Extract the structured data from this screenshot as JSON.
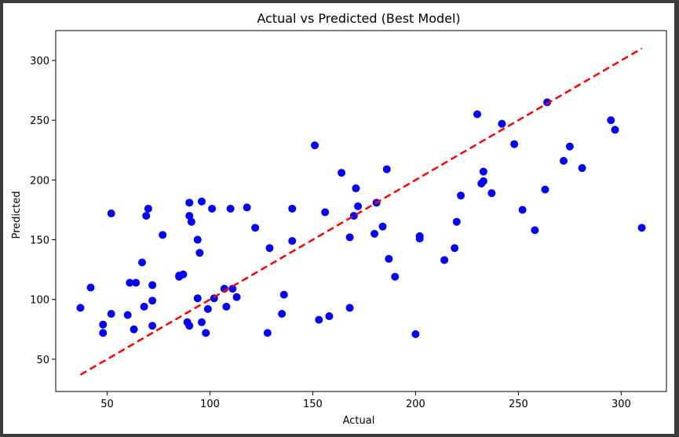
{
  "chart_data": {
    "type": "scatter",
    "title": "Actual vs Predicted (Best Model)",
    "xlabel": "Actual",
    "ylabel": "Predicted",
    "xlim": [
      25,
      322
    ],
    "ylim": [
      23,
      325
    ],
    "xticks": [
      50,
      100,
      150,
      200,
      250,
      300
    ],
    "yticks": [
      50,
      100,
      150,
      200,
      250,
      300
    ],
    "grid": false,
    "series": [
      {
        "marker_color": "#0000ff",
        "points": [
          [
            37,
            93
          ],
          [
            42,
            110
          ],
          [
            48,
            79
          ],
          [
            48,
            72
          ],
          [
            52,
            88
          ],
          [
            52,
            172
          ],
          [
            60,
            87
          ],
          [
            61,
            114
          ],
          [
            63,
            75
          ],
          [
            64,
            114
          ],
          [
            67,
            131
          ],
          [
            68,
            94
          ],
          [
            69,
            170
          ],
          [
            70,
            176
          ],
          [
            72,
            99
          ],
          [
            72,
            112
          ],
          [
            72,
            78
          ],
          [
            77,
            154
          ],
          [
            85,
            119
          ],
          [
            85,
            120
          ],
          [
            87,
            121
          ],
          [
            89,
            81
          ],
          [
            90,
            78
          ],
          [
            90,
            170
          ],
          [
            90,
            181
          ],
          [
            91,
            165
          ],
          [
            94,
            150
          ],
          [
            94,
            101
          ],
          [
            95,
            139
          ],
          [
            96,
            182
          ],
          [
            96,
            81
          ],
          [
            98,
            72
          ],
          [
            99,
            92
          ],
          [
            101,
            176
          ],
          [
            102,
            101
          ],
          [
            107,
            109
          ],
          [
            108,
            94
          ],
          [
            110,
            176
          ],
          [
            111,
            109
          ],
          [
            113,
            102
          ],
          [
            118,
            177
          ],
          [
            122,
            160
          ],
          [
            128,
            72
          ],
          [
            129,
            143
          ],
          [
            135,
            88
          ],
          [
            136,
            104
          ],
          [
            140,
            176
          ],
          [
            140,
            149
          ],
          [
            151,
            229
          ],
          [
            153,
            83
          ],
          [
            156,
            173
          ],
          [
            158,
            86
          ],
          [
            164,
            206
          ],
          [
            168,
            152
          ],
          [
            168,
            93
          ],
          [
            170,
            170
          ],
          [
            171,
            193
          ],
          [
            172,
            178
          ],
          [
            180,
            155
          ],
          [
            181,
            181
          ],
          [
            184,
            161
          ],
          [
            186,
            209
          ],
          [
            187,
            134
          ],
          [
            190,
            119
          ],
          [
            200,
            71
          ],
          [
            202,
            151
          ],
          [
            202,
            153
          ],
          [
            214,
            133
          ],
          [
            219,
            143
          ],
          [
            220,
            165
          ],
          [
            222,
            187
          ],
          [
            230,
            255
          ],
          [
            232,
            197
          ],
          [
            233,
            199
          ],
          [
            233,
            207
          ],
          [
            237,
            189
          ],
          [
            242,
            247
          ],
          [
            248,
            230
          ],
          [
            252,
            175
          ],
          [
            258,
            158
          ],
          [
            263,
            192
          ],
          [
            264,
            265
          ],
          [
            272,
            216
          ],
          [
            275,
            228
          ],
          [
            281,
            210
          ],
          [
            295,
            250
          ],
          [
            297,
            242
          ],
          [
            310,
            160
          ]
        ]
      }
    ],
    "reference_line": {
      "from": [
        37,
        37
      ],
      "to": [
        310,
        310
      ],
      "color": "#ff0000",
      "style": "dashed"
    }
  }
}
